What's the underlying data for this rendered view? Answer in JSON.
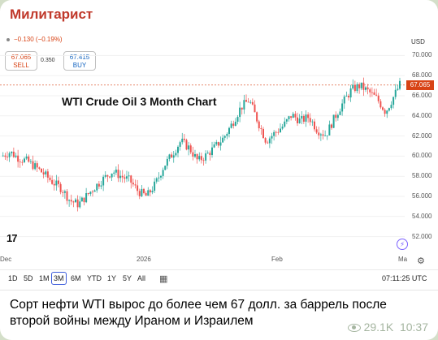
{
  "message": {
    "channel_name": "Милитарист",
    "caption": "Сорт нефти WTI вырос до более чем 67 долл. за баррель после второй войны между Ираном и Израилем",
    "views": "29.1K",
    "time": "10:37"
  },
  "widget": {
    "change": "−0.130 (−0.19%)",
    "sell_price": "67.065",
    "sell_label": "SELL",
    "spread": "0.350",
    "buy_price": "67.415",
    "buy_label": "BUY",
    "currency": "USD",
    "last_price": "67.065",
    "logo": "17",
    "timeframes": [
      "1D",
      "5D",
      "1M",
      "3M",
      "6M",
      "YTD",
      "1Y",
      "5Y",
      "All"
    ],
    "active_timeframe": "3M",
    "clock": "07:11:25 UTC",
    "accent_color": "#d84315",
    "icons": [
      "calendar-icon",
      "settings-icon",
      "lightning-icon",
      "eye-icon"
    ]
  },
  "chart_data": {
    "type": "candlestick",
    "title": "WTI Crude Oil 3 Month Chart",
    "y_ticks": [
      "70.000",
      "68.000",
      "66.000",
      "64.000",
      "62.000",
      "60.000",
      "58.000",
      "56.000",
      "54.000",
      "52.000"
    ],
    "x_ticks": [
      "Dec",
      "2026",
      "Feb",
      "Ma"
    ],
    "ylim": [
      51,
      71
    ],
    "close_path": [
      [
        0,
        60.0
      ],
      [
        3,
        60.4
      ],
      [
        6,
        59.8
      ],
      [
        9,
        59.5
      ],
      [
        12,
        58.9
      ],
      [
        15,
        58.2
      ],
      [
        18,
        57.4
      ],
      [
        21,
        56.8
      ],
      [
        24,
        55.6
      ],
      [
        27,
        55.2
      ],
      [
        30,
        56.1
      ],
      [
        33,
        57.0
      ],
      [
        36,
        57.8
      ],
      [
        39,
        58.5
      ],
      [
        42,
        58.0
      ],
      [
        45,
        57.6
      ],
      [
        48,
        56.5
      ],
      [
        51,
        56.0
      ],
      [
        54,
        57.2
      ],
      [
        57,
        59.0
      ],
      [
        60,
        60.2
      ],
      [
        63,
        61.5
      ],
      [
        66,
        60.8
      ],
      [
        69,
        59.5
      ],
      [
        72,
        60.1
      ],
      [
        75,
        60.9
      ],
      [
        78,
        61.8
      ],
      [
        81,
        63.2
      ],
      [
        84,
        64.8
      ],
      [
        87,
        65.6
      ],
      [
        90,
        63.5
      ],
      [
        93,
        61.5
      ],
      [
        96,
        62.3
      ],
      [
        99,
        63.0
      ],
      [
        102,
        64.1
      ],
      [
        105,
        63.5
      ],
      [
        108,
        63.9
      ],
      [
        111,
        62.6
      ],
      [
        114,
        62.1
      ],
      [
        117,
        63.8
      ],
      [
        120,
        65.3
      ],
      [
        123,
        66.6
      ],
      [
        126,
        67.0
      ],
      [
        129,
        66.4
      ],
      [
        132,
        65.7
      ],
      [
        135,
        64.4
      ],
      [
        138,
        66.0
      ],
      [
        140,
        67.1
      ]
    ]
  }
}
